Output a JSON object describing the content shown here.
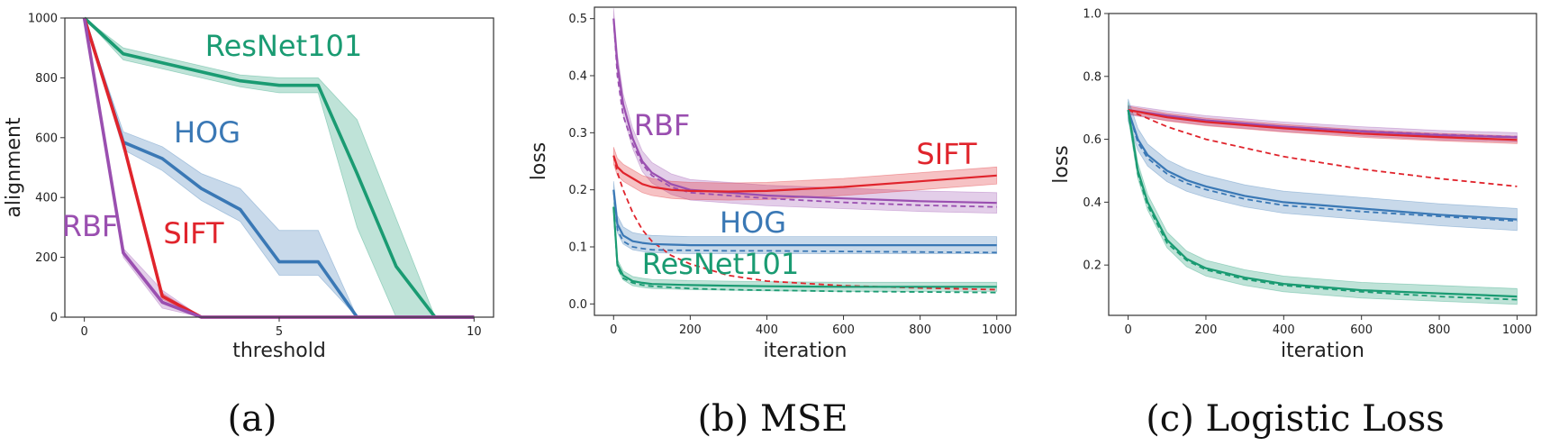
{
  "colors": {
    "ResNet101": "#1a9b72",
    "HOG": "#3a78b5",
    "SIFT": "#e0242c",
    "RBF": "#9a4fb0"
  },
  "chart_data": [
    {
      "type": "line",
      "caption": "(a)",
      "xlabel": "threshold",
      "ylabel": "alignment",
      "xlim": [
        -0.5,
        10.5
      ],
      "ylim": [
        0,
        1000
      ],
      "xticks": [
        0,
        5,
        10
      ],
      "yticks": [
        0,
        200,
        400,
        600,
        800,
        1000
      ],
      "grid": false,
      "series": [
        {
          "name": "ResNet101",
          "x": [
            0,
            1,
            2,
            3,
            4,
            5,
            6,
            7,
            8,
            9,
            10
          ],
          "values": [
            1000,
            880,
            850,
            820,
            790,
            775,
            775,
            480,
            170,
            0,
            0
          ],
          "lower": [
            1000,
            860,
            830,
            800,
            770,
            750,
            750,
            300,
            0,
            0,
            0
          ],
          "upper": [
            1000,
            900,
            870,
            840,
            810,
            800,
            800,
            660,
            330,
            0,
            0
          ],
          "label_text": "ResNet101"
        },
        {
          "name": "HOG",
          "x": [
            0,
            1,
            2,
            3,
            4,
            5,
            6,
            7,
            8,
            9,
            10
          ],
          "values": [
            1000,
            585,
            530,
            430,
            360,
            185,
            185,
            0,
            0,
            0,
            0
          ],
          "lower": [
            1000,
            560,
            490,
            390,
            320,
            140,
            140,
            0,
            0,
            0,
            0
          ],
          "upper": [
            1000,
            620,
            570,
            480,
            430,
            290,
            290,
            0,
            0,
            0,
            0
          ],
          "label_text": "HOG"
        },
        {
          "name": "SIFT",
          "x": [
            0,
            1,
            2,
            3,
            4,
            5,
            6,
            7,
            8,
            9,
            10
          ],
          "values": [
            1000,
            580,
            70,
            0,
            0,
            0,
            0,
            0,
            0,
            0,
            0
          ],
          "lower": [
            1000,
            580,
            60,
            0,
            0,
            0,
            0,
            0,
            0,
            0,
            0
          ],
          "upper": [
            1000,
            580,
            80,
            0,
            0,
            0,
            0,
            0,
            0,
            0,
            0
          ],
          "label_text": "SIFT"
        },
        {
          "name": "RBF",
          "x": [
            0,
            1,
            2,
            3,
            4,
            5,
            6,
            7,
            8,
            9,
            10
          ],
          "values": [
            1000,
            215,
            50,
            0,
            0,
            0,
            0,
            0,
            0,
            0,
            0
          ],
          "lower": [
            1000,
            200,
            30,
            0,
            0,
            0,
            0,
            0,
            0,
            0,
            0
          ],
          "upper": [
            1000,
            230,
            90,
            0,
            0,
            0,
            0,
            0,
            0,
            0,
            0
          ],
          "label_text": "RBF"
        }
      ]
    },
    {
      "type": "line",
      "caption": "(b) MSE",
      "xlabel": "iteration",
      "ylabel": "loss",
      "xlim": [
        -50,
        1050
      ],
      "ylim": [
        -0.02,
        0.52
      ],
      "xticks": [
        0,
        200,
        400,
        600,
        800,
        1000
      ],
      "yticks": [
        0.0,
        0.1,
        0.2,
        0.3,
        0.4,
        0.5
      ],
      "grid": false,
      "series": [
        {
          "name": "RBF",
          "x": [
            0,
            10,
            25,
            50,
            75,
            100,
            150,
            200,
            300,
            400,
            600,
            800,
            1000
          ],
          "values": [
            0.5,
            0.42,
            0.35,
            0.29,
            0.25,
            0.23,
            0.21,
            0.2,
            0.195,
            0.19,
            0.185,
            0.18,
            0.177
          ],
          "band": 0.018,
          "dashed": [
            0.5,
            0.4,
            0.33,
            0.28,
            0.245,
            0.225,
            0.205,
            0.195,
            0.19,
            0.185,
            0.178,
            0.173,
            0.17
          ],
          "label_text": "RBF"
        },
        {
          "name": "SIFT",
          "x": [
            0,
            10,
            25,
            50,
            75,
            100,
            150,
            200,
            300,
            400,
            600,
            800,
            1000
          ],
          "values": [
            0.26,
            0.24,
            0.23,
            0.22,
            0.21,
            0.205,
            0.2,
            0.198,
            0.197,
            0.198,
            0.205,
            0.215,
            0.225
          ],
          "band": 0.015,
          "dashed": [
            0.26,
            0.23,
            0.2,
            0.16,
            0.13,
            0.11,
            0.085,
            0.07,
            0.05,
            0.04,
            0.032,
            0.028,
            0.025
          ],
          "label_text": "SIFT"
        },
        {
          "name": "HOG",
          "x": [
            0,
            10,
            25,
            50,
            75,
            100,
            150,
            200,
            300,
            400,
            600,
            800,
            1000
          ],
          "values": [
            0.2,
            0.14,
            0.12,
            0.11,
            0.107,
            0.105,
            0.104,
            0.103,
            0.103,
            0.103,
            0.103,
            0.103,
            0.103
          ],
          "band": 0.015,
          "dashed": [
            0.2,
            0.13,
            0.11,
            0.1,
            0.097,
            0.095,
            0.094,
            0.094,
            0.093,
            0.093,
            0.092,
            0.091,
            0.09
          ],
          "label_text": "HOG"
        },
        {
          "name": "ResNet101",
          "x": [
            0,
            10,
            25,
            50,
            75,
            100,
            150,
            200,
            300,
            400,
            600,
            800,
            1000
          ],
          "values": [
            0.17,
            0.07,
            0.05,
            0.04,
            0.037,
            0.035,
            0.034,
            0.033,
            0.032,
            0.031,
            0.03,
            0.03,
            0.03
          ],
          "band": 0.008,
          "dashed": [
            0.17,
            0.065,
            0.045,
            0.037,
            0.033,
            0.031,
            0.029,
            0.027,
            0.025,
            0.024,
            0.022,
            0.021,
            0.02
          ],
          "label_text": "ResNet101"
        }
      ]
    },
    {
      "type": "line",
      "caption": "(c) Logistic Loss",
      "xlabel": "iteration",
      "ylabel": "loss",
      "xlim": [
        -50,
        1050
      ],
      "ylim": [
        0.04,
        1.0
      ],
      "xticks": [
        0,
        200,
        400,
        600,
        800,
        1000
      ],
      "yticks": [
        0.2,
        0.4,
        0.6,
        0.8,
        1.0
      ],
      "grid": false,
      "series": [
        {
          "name": "RBF",
          "x": [
            0,
            100,
            200,
            400,
            600,
            800,
            1000
          ],
          "values": [
            0.693,
            0.675,
            0.66,
            0.64,
            0.625,
            0.613,
            0.606
          ],
          "band": 0.015,
          "dashed": [
            0.693,
            0.674,
            0.66,
            0.64,
            0.626,
            0.615,
            0.608
          ]
        },
        {
          "name": "SIFT",
          "x": [
            0,
            100,
            200,
            400,
            600,
            800,
            1000
          ],
          "values": [
            0.693,
            0.67,
            0.655,
            0.635,
            0.618,
            0.607,
            0.598
          ],
          "band": 0.012,
          "dashed": [
            0.693,
            0.64,
            0.6,
            0.545,
            0.505,
            0.475,
            0.45
          ]
        },
        {
          "name": "HOG",
          "x": [
            0,
            25,
            50,
            100,
            150,
            200,
            300,
            400,
            600,
            800,
            1000
          ],
          "values": [
            0.693,
            0.6,
            0.55,
            0.5,
            0.47,
            0.45,
            0.42,
            0.4,
            0.38,
            0.36,
            0.345
          ],
          "band": 0.035,
          "dashed": [
            0.693,
            0.59,
            0.54,
            0.49,
            0.46,
            0.44,
            0.41,
            0.39,
            0.37,
            0.355,
            0.34
          ]
        },
        {
          "name": "ResNet101",
          "x": [
            0,
            25,
            50,
            100,
            150,
            200,
            300,
            400,
            600,
            800,
            1000
          ],
          "values": [
            0.693,
            0.5,
            0.4,
            0.28,
            0.22,
            0.19,
            0.16,
            0.14,
            0.12,
            0.11,
            0.1
          ],
          "band": 0.025,
          "dashed": [
            0.693,
            0.49,
            0.39,
            0.27,
            0.215,
            0.185,
            0.155,
            0.135,
            0.115,
            0.1,
            0.09
          ]
        }
      ]
    }
  ]
}
